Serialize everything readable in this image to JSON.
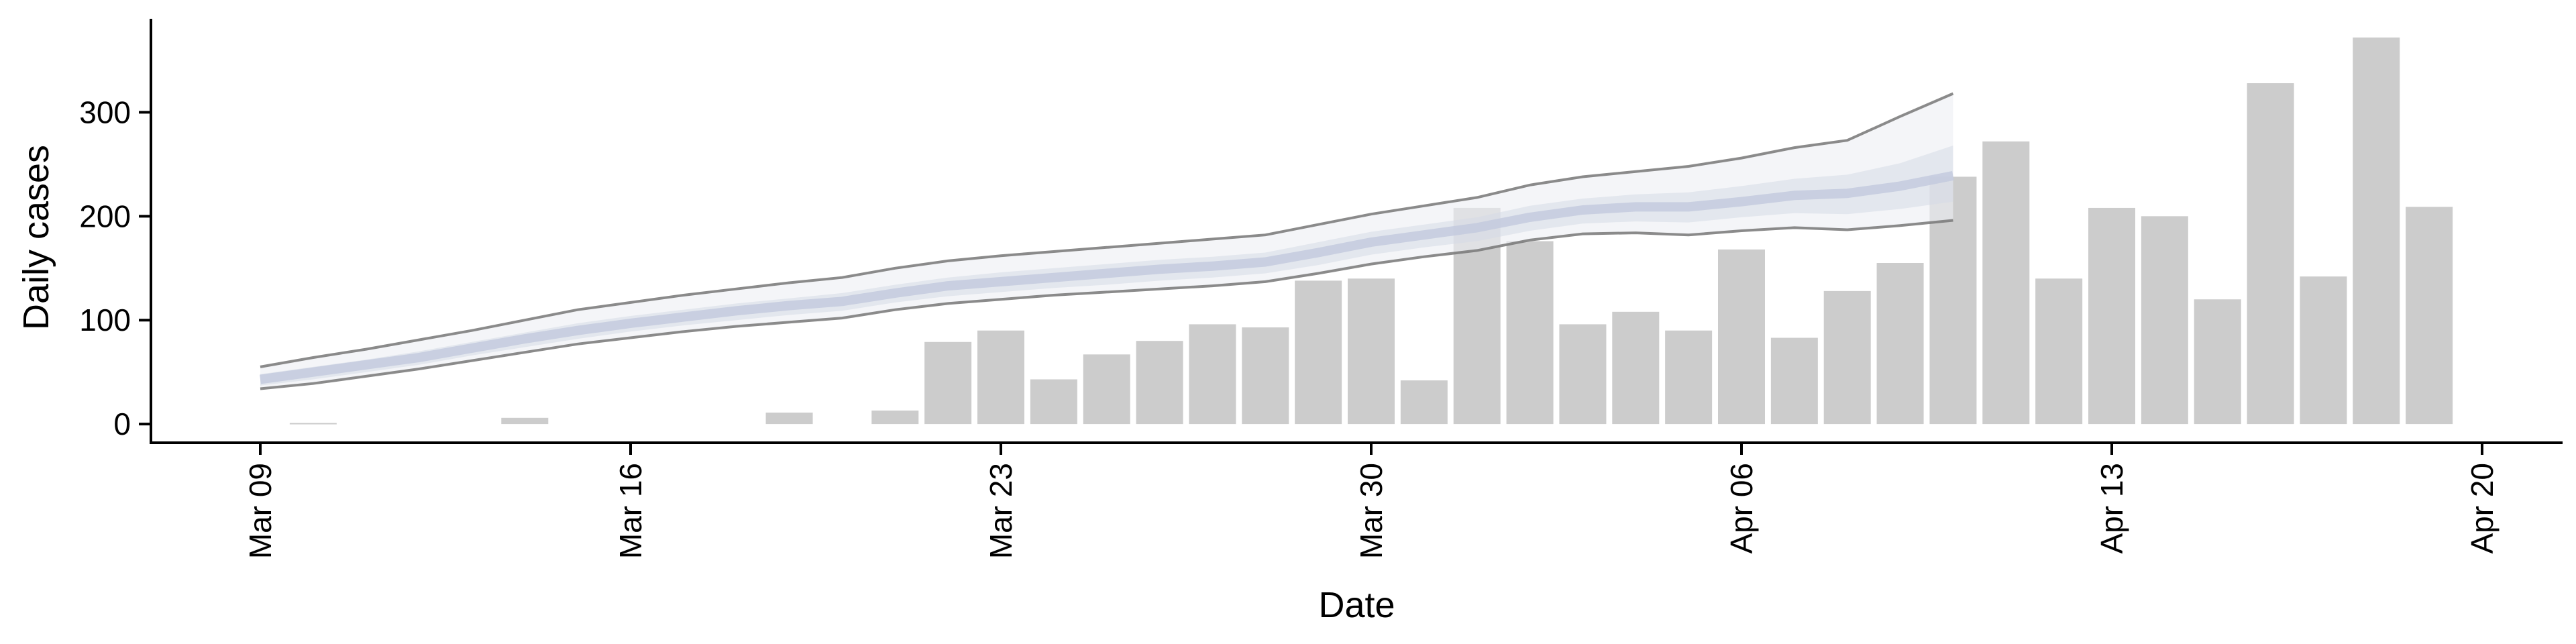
{
  "chart_data": {
    "type": "bar",
    "xlabel": "Date",
    "ylabel": "Daily cases",
    "ylim": [
      -18,
      390
    ],
    "xlim": [
      "2020-03-09",
      "2020-04-20"
    ],
    "x_ticks": [
      {
        "date": "2020-03-09",
        "label": "Mar 09"
      },
      {
        "date": "2020-03-16",
        "label": "Mar 16"
      },
      {
        "date": "2020-03-23",
        "label": "Mar 23"
      },
      {
        "date": "2020-03-30",
        "label": "Mar 30"
      },
      {
        "date": "2020-04-06",
        "label": "Apr 06"
      },
      {
        "date": "2020-04-13",
        "label": "Apr 13"
      },
      {
        "date": "2020-04-20",
        "label": "Apr 20"
      }
    ],
    "y_ticks": [
      0,
      100,
      200,
      300
    ],
    "grid": false,
    "colors": {
      "bar": "#cccccc",
      "band_outer": "#eceef3",
      "band_inner": "#d6dbe6",
      "median": "#c2c9dd",
      "outer_line": "#777777",
      "axis": "#000000"
    },
    "bars": [
      {
        "date": "2020-03-10",
        "value": 1
      },
      {
        "date": "2020-03-14",
        "value": 6
      },
      {
        "date": "2020-03-19",
        "value": 11
      },
      {
        "date": "2020-03-21",
        "value": 13
      },
      {
        "date": "2020-03-22",
        "value": 79
      },
      {
        "date": "2020-03-23",
        "value": 90
      },
      {
        "date": "2020-03-24",
        "value": 43
      },
      {
        "date": "2020-03-25",
        "value": 67
      },
      {
        "date": "2020-03-26",
        "value": 80
      },
      {
        "date": "2020-03-27",
        "value": 96
      },
      {
        "date": "2020-03-28",
        "value": 93
      },
      {
        "date": "2020-03-29",
        "value": 138
      },
      {
        "date": "2020-03-30",
        "value": 140
      },
      {
        "date": "2020-03-31",
        "value": 42
      },
      {
        "date": "2020-04-01",
        "value": 208
      },
      {
        "date": "2020-04-02",
        "value": 176
      },
      {
        "date": "2020-04-03",
        "value": 96
      },
      {
        "date": "2020-04-04",
        "value": 108
      },
      {
        "date": "2020-04-05",
        "value": 90
      },
      {
        "date": "2020-04-06",
        "value": 168
      },
      {
        "date": "2020-04-07",
        "value": 83
      },
      {
        "date": "2020-04-08",
        "value": 128
      },
      {
        "date": "2020-04-09",
        "value": 155
      },
      {
        "date": "2020-04-10",
        "value": 238
      },
      {
        "date": "2020-04-11",
        "value": 272
      },
      {
        "date": "2020-04-12",
        "value": 140
      },
      {
        "date": "2020-04-13",
        "value": 208
      },
      {
        "date": "2020-04-14",
        "value": 200
      },
      {
        "date": "2020-04-15",
        "value": 120
      },
      {
        "date": "2020-04-16",
        "value": 328
      },
      {
        "date": "2020-04-17",
        "value": 142
      },
      {
        "date": "2020-04-18",
        "value": 372
      },
      {
        "date": "2020-04-19",
        "value": 209
      }
    ],
    "band": [
      {
        "date": "2020-03-09",
        "lower": 34,
        "inner_lower": 37,
        "median": 43,
        "inner_upper": 48,
        "upper": 55
      },
      {
        "date": "2020-03-10",
        "lower": 39,
        "inner_lower": 43,
        "median": 50,
        "inner_upper": 55,
        "upper": 64
      },
      {
        "date": "2020-03-11",
        "lower": 46,
        "inner_lower": 50,
        "median": 57,
        "inner_upper": 62,
        "upper": 72
      },
      {
        "date": "2020-03-12",
        "lower": 53,
        "inner_lower": 57,
        "median": 64,
        "inner_upper": 70,
        "upper": 81
      },
      {
        "date": "2020-03-13",
        "lower": 61,
        "inner_lower": 66,
        "median": 73,
        "inner_upper": 79,
        "upper": 90
      },
      {
        "date": "2020-03-14",
        "lower": 69,
        "inner_lower": 74,
        "median": 82,
        "inner_upper": 88,
        "upper": 100
      },
      {
        "date": "2020-03-15",
        "lower": 77,
        "inner_lower": 82,
        "median": 90,
        "inner_upper": 97,
        "upper": 110
      },
      {
        "date": "2020-03-16",
        "lower": 83,
        "inner_lower": 89,
        "median": 97,
        "inner_upper": 104,
        "upper": 117
      },
      {
        "date": "2020-03-17",
        "lower": 89,
        "inner_lower": 95,
        "median": 103,
        "inner_upper": 110,
        "upper": 124
      },
      {
        "date": "2020-03-18",
        "lower": 94,
        "inner_lower": 100,
        "median": 109,
        "inner_upper": 116,
        "upper": 130
      },
      {
        "date": "2020-03-19",
        "lower": 98,
        "inner_lower": 105,
        "median": 114,
        "inner_upper": 121,
        "upper": 136
      },
      {
        "date": "2020-03-20",
        "lower": 102,
        "inner_lower": 109,
        "median": 118,
        "inner_upper": 126,
        "upper": 141
      },
      {
        "date": "2020-03-21",
        "lower": 110,
        "inner_lower": 117,
        "median": 126,
        "inner_upper": 134,
        "upper": 150
      },
      {
        "date": "2020-03-22",
        "lower": 116,
        "inner_lower": 123,
        "median": 133,
        "inner_upper": 141,
        "upper": 157
      },
      {
        "date": "2020-03-23",
        "lower": 120,
        "inner_lower": 127,
        "median": 137,
        "inner_upper": 146,
        "upper": 162
      },
      {
        "date": "2020-03-24",
        "lower": 124,
        "inner_lower": 131,
        "median": 141,
        "inner_upper": 150,
        "upper": 166
      },
      {
        "date": "2020-03-25",
        "lower": 127,
        "inner_lower": 134,
        "median": 145,
        "inner_upper": 154,
        "upper": 170
      },
      {
        "date": "2020-03-26",
        "lower": 130,
        "inner_lower": 138,
        "median": 149,
        "inner_upper": 158,
        "upper": 174
      },
      {
        "date": "2020-03-27",
        "lower": 133,
        "inner_lower": 141,
        "median": 152,
        "inner_upper": 161,
        "upper": 178
      },
      {
        "date": "2020-03-28",
        "lower": 137,
        "inner_lower": 145,
        "median": 156,
        "inner_upper": 165,
        "upper": 182
      },
      {
        "date": "2020-03-29",
        "lower": 145,
        "inner_lower": 153,
        "median": 165,
        "inner_upper": 175,
        "upper": 192
      },
      {
        "date": "2020-03-30",
        "lower": 154,
        "inner_lower": 163,
        "median": 175,
        "inner_upper": 185,
        "upper": 202
      },
      {
        "date": "2020-03-31",
        "lower": 161,
        "inner_lower": 170,
        "median": 182,
        "inner_upper": 192,
        "upper": 210
      },
      {
        "date": "2020-04-01",
        "lower": 167,
        "inner_lower": 176,
        "median": 189,
        "inner_upper": 199,
        "upper": 218
      },
      {
        "date": "2020-04-02",
        "lower": 177,
        "inner_lower": 186,
        "median": 199,
        "inner_upper": 210,
        "upper": 230
      },
      {
        "date": "2020-04-03",
        "lower": 183,
        "inner_lower": 193,
        "median": 206,
        "inner_upper": 217,
        "upper": 238
      },
      {
        "date": "2020-04-04",
        "lower": 184,
        "inner_lower": 195,
        "median": 209,
        "inner_upper": 221,
        "upper": 243
      },
      {
        "date": "2020-04-05",
        "lower": 182,
        "inner_lower": 194,
        "median": 209,
        "inner_upper": 223,
        "upper": 248
      },
      {
        "date": "2020-04-06",
        "lower": 186,
        "inner_lower": 199,
        "median": 214,
        "inner_upper": 229,
        "upper": 256
      },
      {
        "date": "2020-04-07",
        "lower": 189,
        "inner_lower": 203,
        "median": 220,
        "inner_upper": 236,
        "upper": 266
      },
      {
        "date": "2020-04-08",
        "lower": 187,
        "inner_lower": 202,
        "median": 222,
        "inner_upper": 240,
        "upper": 273
      },
      {
        "date": "2020-04-09",
        "lower": 191,
        "inner_lower": 207,
        "median": 229,
        "inner_upper": 251,
        "upper": 296
      },
      {
        "date": "2020-04-10",
        "lower": 196,
        "inner_lower": 214,
        "median": 239,
        "inner_upper": 268,
        "upper": 318
      }
    ]
  }
}
